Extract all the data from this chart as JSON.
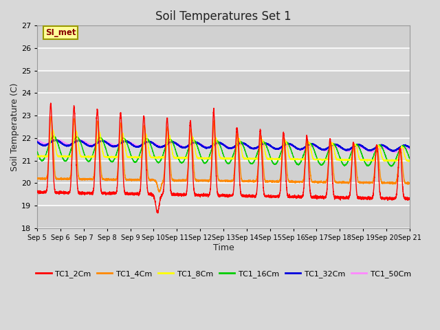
{
  "title": "Soil Temperatures Set 1",
  "xlabel": "Time",
  "ylabel": "Soil Temperature (C)",
  "ylim": [
    18.0,
    27.0
  ],
  "yticks": [
    18.0,
    19.0,
    20.0,
    21.0,
    22.0,
    23.0,
    24.0,
    25.0,
    26.0,
    27.0
  ],
  "bg_color": "#d8d8d8",
  "plot_bg_color": "#d8d8d8",
  "grid_color": "#ffffff",
  "series_colors": {
    "TC1_2Cm": "#ff0000",
    "TC1_4Cm": "#ff8800",
    "TC1_8Cm": "#ffff00",
    "TC1_16Cm": "#00cc00",
    "TC1_32Cm": "#0000dd",
    "TC1_50Cm": "#ff88ff"
  },
  "annotation_text": "SI_met",
  "annotation_bg": "#ffff99",
  "annotation_border": "#999900",
  "n_days": 16,
  "start_day": 5,
  "points_per_day": 288,
  "title_fontsize": 12
}
